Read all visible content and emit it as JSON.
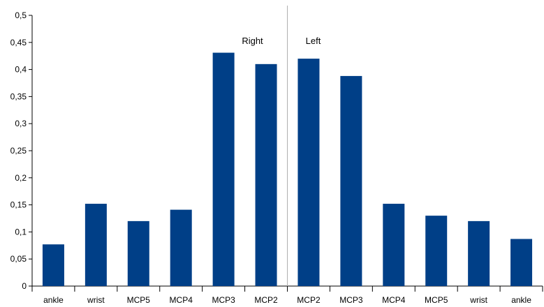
{
  "chart_data": {
    "type": "bar",
    "categories": [
      "ankle",
      "wrist",
      "MCP5",
      "MCP4",
      "MCP3",
      "MCP2",
      "MCP2",
      "MCP3",
      "MCP4",
      "MCP5",
      "wrist",
      "ankle"
    ],
    "values": [
      0.077,
      0.152,
      0.12,
      0.141,
      0.431,
      0.41,
      0.42,
      0.388,
      0.152,
      0.13,
      0.12,
      0.087
    ],
    "ylim": [
      0,
      0.5
    ],
    "yticks": [
      "0",
      "0,05",
      "0,1",
      "0,15",
      "0,2",
      "0,25",
      "0,3",
      "0,35",
      "0,4",
      "0,45",
      "0,5"
    ],
    "grid": false,
    "legend": "none",
    "bar_color": "#003F87",
    "annotations": {
      "right_label": "Right",
      "left_label": "Left"
    },
    "divider_after_category_index": 5
  }
}
